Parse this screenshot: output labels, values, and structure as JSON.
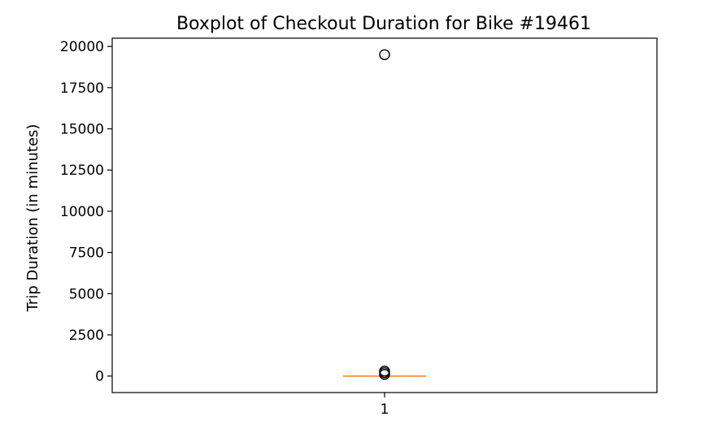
{
  "chart_data": {
    "type": "boxplot",
    "title": "Boxplot of Checkout Duration for Bike #19461",
    "xlabel": "",
    "ylabel": "Trip Duration (in minutes)",
    "categories": [
      "1"
    ],
    "ylim": [
      -1000,
      20500
    ],
    "yticks": [
      0,
      2500,
      5000,
      7500,
      10000,
      12500,
      15000,
      17500,
      20000
    ],
    "ytick_labels": [
      "0",
      "2500",
      "5000",
      "7500",
      "10000",
      "12500",
      "15000",
      "17500",
      "20000"
    ],
    "grid": false,
    "legend": "none",
    "boxes": [
      {
        "category": "1",
        "whisker_low": 0,
        "q1": 0,
        "median": 0,
        "q3": 0,
        "whisker_high": 0,
        "outliers": [
          19500,
          300,
          200,
          100
        ]
      }
    ],
    "colors": {
      "median": "#ff7f0e",
      "box": "#000000",
      "flier": "#000000"
    }
  }
}
